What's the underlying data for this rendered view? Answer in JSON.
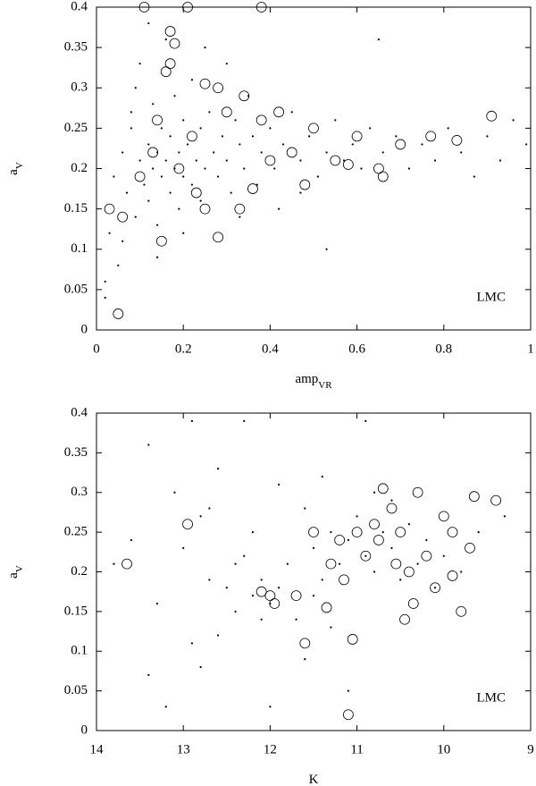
{
  "chart_data": [
    {
      "type": "scatter",
      "x_label": {
        "text": "amp",
        "sub": "VR"
      },
      "y_label": {
        "text": "a",
        "sub": "V"
      },
      "annotation": "LMC",
      "xlim": [
        0,
        1
      ],
      "xticks": [
        0,
        0.2,
        0.4,
        0.6,
        0.8,
        1
      ],
      "ylim": [
        0,
        0.4
      ],
      "yticks": [
        0,
        0.05,
        0.1,
        0.15,
        0.2,
        0.25,
        0.3,
        0.35,
        0.4
      ],
      "series": [
        {
          "marker": "dot",
          "color": "#000000",
          "x": [
            0.02,
            0.03,
            0.04,
            0.05,
            0.06,
            0.07,
            0.08,
            0.09,
            0.1,
            0.1,
            0.11,
            0.12,
            0.12,
            0.13,
            0.13,
            0.14,
            0.14,
            0.15,
            0.15,
            0.16,
            0.16,
            0.17,
            0.17,
            0.18,
            0.18,
            0.19,
            0.19,
            0.2,
            0.2,
            0.21,
            0.22,
            0.22,
            0.23,
            0.24,
            0.24,
            0.25,
            0.26,
            0.27,
            0.28,
            0.29,
            0.3,
            0.31,
            0.32,
            0.33,
            0.34,
            0.35,
            0.36,
            0.37,
            0.38,
            0.4,
            0.41,
            0.43,
            0.45,
            0.47,
            0.49,
            0.51,
            0.53,
            0.55,
            0.57,
            0.59,
            0.61,
            0.63,
            0.66,
            0.69,
            0.72,
            0.75,
            0.78,
            0.81,
            0.84,
            0.87,
            0.9,
            0.93,
            0.96,
            0.99,
            0.12,
            0.25,
            0.06,
            0.09,
            0.3,
            0.53,
            0.02,
            0.14,
            0.42,
            0.65,
            0.47,
            0.2,
            0.08,
            0.33
          ],
          "values": [
            0.06,
            0.12,
            0.19,
            0.08,
            0.22,
            0.17,
            0.25,
            0.14,
            0.21,
            0.33,
            0.18,
            0.23,
            0.16,
            0.2,
            0.28,
            0.22,
            0.13,
            0.19,
            0.25,
            0.21,
            0.36,
            0.17,
            0.24,
            0.2,
            0.29,
            0.22,
            0.15,
            0.19,
            0.26,
            0.23,
            0.18,
            0.31,
            0.21,
            0.25,
            0.16,
            0.2,
            0.27,
            0.22,
            0.19,
            0.24,
            0.21,
            0.17,
            0.26,
            0.23,
            0.2,
            0.29,
            0.24,
            0.18,
            0.22,
            0.25,
            0.2,
            0.23,
            0.27,
            0.21,
            0.24,
            0.19,
            0.22,
            0.26,
            0.21,
            0.23,
            0.2,
            0.25,
            0.22,
            0.24,
            0.2,
            0.23,
            0.21,
            0.25,
            0.22,
            0.19,
            0.24,
            0.21,
            0.26,
            0.23,
            0.38,
            0.35,
            0.11,
            0.3,
            0.33,
            0.1,
            0.04,
            0.09,
            0.15,
            0.36,
            0.17,
            0.12,
            0.27,
            0.14
          ]
        },
        {
          "marker": "circle",
          "color": "#000000",
          "x": [
            0.05,
            0.03,
            0.11,
            0.21,
            0.38,
            0.17,
            0.16,
            0.18,
            0.17,
            0.06,
            0.15,
            0.28,
            0.13,
            0.19,
            0.22,
            0.25,
            0.28,
            0.3,
            0.34,
            0.38,
            0.42,
            0.45,
            0.5,
            0.55,
            0.6,
            0.65,
            0.7,
            0.77,
            0.83,
            0.91,
            0.33,
            0.25,
            0.4,
            0.48,
            0.58,
            0.66,
            0.1,
            0.14,
            0.23,
            0.36
          ],
          "values": [
            0.02,
            0.15,
            0.4,
            0.4,
            0.4,
            0.37,
            0.32,
            0.355,
            0.33,
            0.14,
            0.11,
            0.115,
            0.22,
            0.2,
            0.24,
            0.305,
            0.3,
            0.27,
            0.29,
            0.26,
            0.27,
            0.22,
            0.25,
            0.21,
            0.24,
            0.2,
            0.23,
            0.24,
            0.235,
            0.265,
            0.15,
            0.15,
            0.21,
            0.18,
            0.205,
            0.19,
            0.19,
            0.26,
            0.17,
            0.175
          ]
        }
      ]
    },
    {
      "type": "scatter",
      "x_label": {
        "text": "K"
      },
      "y_label": {
        "text": "a",
        "sub": "V"
      },
      "annotation": "LMC",
      "xlim": [
        14,
        9
      ],
      "xticks": [
        14,
        13,
        12,
        11,
        10,
        9
      ],
      "ylim": [
        0,
        0.4
      ],
      "yticks": [
        0,
        0.05,
        0.1,
        0.15,
        0.2,
        0.25,
        0.3,
        0.35,
        0.4
      ],
      "series": [
        {
          "marker": "dot",
          "color": "#000000",
          "x": [
            13.8,
            13.4,
            13.4,
            13.2,
            13.3,
            13.1,
            13.0,
            12.9,
            12.8,
            12.7,
            12.6,
            12.5,
            12.4,
            12.3,
            12.2,
            12.1,
            12.0,
            11.9,
            11.8,
            11.7,
            11.6,
            11.5,
            11.4,
            11.3,
            11.2,
            11.1,
            11.0,
            10.9,
            10.8,
            10.7,
            10.6,
            10.5,
            10.4,
            10.3,
            10.2,
            10.1,
            10.0,
            9.8,
            9.6,
            9.3,
            12.6,
            12.9,
            12.3,
            11.1,
            11.6,
            12.0,
            10.9,
            12.8,
            11.3,
            12.2,
            13.6,
            11.9,
            12.4,
            12.1,
            11.5,
            10.6,
            10.8,
            11.4,
            12.7
          ],
          "values": [
            0.21,
            0.36,
            0.07,
            0.03,
            0.16,
            0.3,
            0.23,
            0.11,
            0.27,
            0.19,
            0.33,
            0.18,
            0.15,
            0.22,
            0.17,
            0.19,
            0.16,
            0.18,
            0.21,
            0.14,
            0.28,
            0.23,
            0.19,
            0.25,
            0.21,
            0.24,
            0.27,
            0.22,
            0.2,
            0.25,
            0.23,
            0.19,
            0.26,
            0.21,
            0.24,
            0.18,
            0.22,
            0.2,
            0.25,
            0.27,
            0.12,
            0.39,
            0.39,
            0.05,
            0.09,
            0.03,
            0.39,
            0.08,
            0.13,
            0.25,
            0.24,
            0.31,
            0.21,
            0.14,
            0.17,
            0.29,
            0.3,
            0.32,
            0.28
          ]
        },
        {
          "marker": "circle",
          "color": "#000000",
          "x": [
            13.65,
            12.95,
            11.1,
            11.05,
            11.6,
            12.0,
            11.95,
            11.5,
            11.3,
            11.2,
            11.0,
            10.9,
            10.8,
            10.7,
            10.6,
            10.5,
            10.4,
            10.3,
            10.2,
            10.1,
            10.0,
            9.9,
            9.8,
            9.7,
            9.65,
            9.4,
            10.45,
            10.35,
            11.35,
            11.7,
            10.75,
            10.55,
            11.15,
            12.1,
            9.9
          ],
          "values": [
            0.21,
            0.26,
            0.02,
            0.115,
            0.11,
            0.17,
            0.16,
            0.25,
            0.21,
            0.24,
            0.25,
            0.22,
            0.26,
            0.305,
            0.28,
            0.25,
            0.2,
            0.3,
            0.22,
            0.18,
            0.27,
            0.25,
            0.15,
            0.23,
            0.295,
            0.29,
            0.14,
            0.16,
            0.155,
            0.17,
            0.24,
            0.21,
            0.19,
            0.175,
            0.195
          ]
        }
      ]
    }
  ]
}
